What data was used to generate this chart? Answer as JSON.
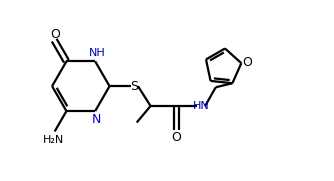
{
  "bg_color": "#ffffff",
  "line_color": "#000000",
  "blue": "#0000b8",
  "lw": 1.6,
  "fs": 8.0,
  "figsize": [
    3.34,
    1.81
  ],
  "dpi": 100,
  "xlim": [
    -0.2,
    10.2
  ],
  "ylim": [
    -0.5,
    5.8
  ]
}
